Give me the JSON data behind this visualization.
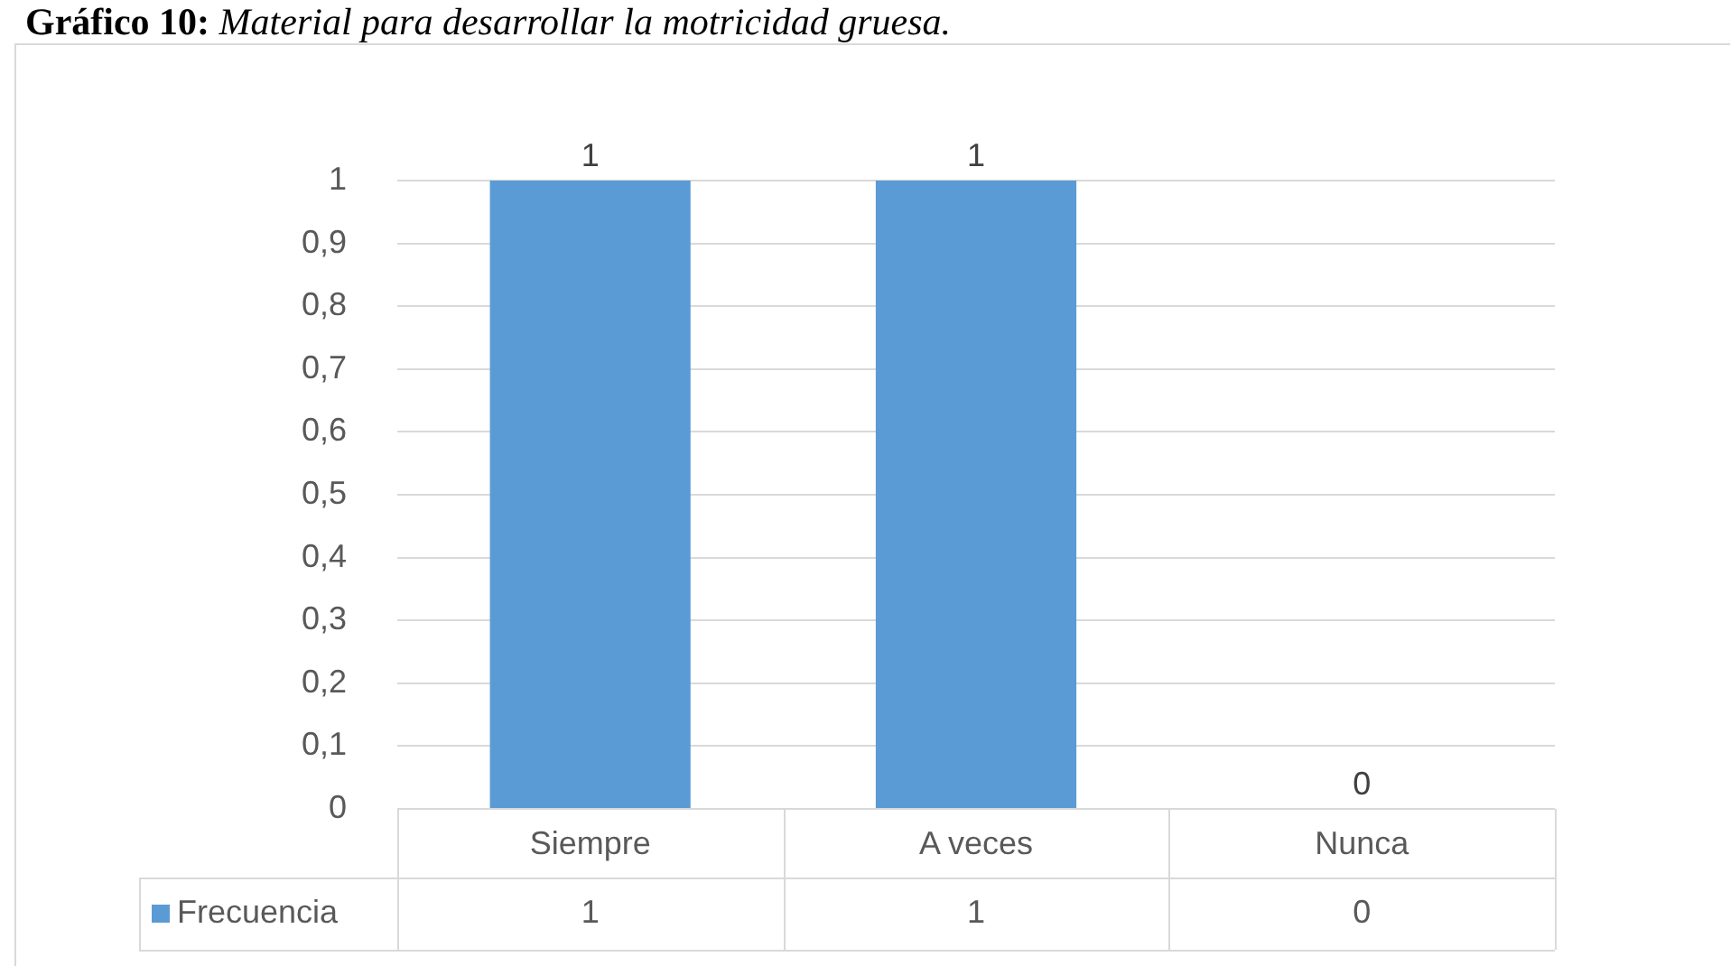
{
  "chart_data": {
    "type": "bar",
    "title": "Gráfico 10: Material para desarrollar la motricidad gruesa.",
    "categories": [
      "Siempre",
      "A veces",
      "Nunca"
    ],
    "series": [
      {
        "name": "Frecuencia",
        "color": "#5b9bd5",
        "values": [
          1,
          1,
          0
        ]
      }
    ],
    "ylim": [
      0,
      1
    ],
    "yticks": [
      0,
      {
        "value": 0.1,
        "label": "0,1"
      },
      {
        "value": 0.2,
        "label": "0,2"
      },
      {
        "value": 0.3,
        "label": "0,3"
      },
      {
        "value": 0.4,
        "label": "0,4"
      },
      {
        "value": 0.5,
        "label": "0,5"
      },
      {
        "value": 0.6,
        "label": "0,6"
      },
      {
        "value": 0.7,
        "label": "0,7"
      },
      {
        "value": 0.8,
        "label": "0,8"
      },
      {
        "value": 0.9,
        "label": "0,9"
      },
      1
    ],
    "annotations": [
      {
        "text": "1",
        "x": "Siempre",
        "y": 1
      },
      {
        "text": "1",
        "x": "A veces",
        "y": 1
      },
      {
        "text": "0",
        "x": "Nunca",
        "y": 0
      }
    ],
    "grid": "y",
    "legend": "bottom left",
    "data_labels": true
  }
}
